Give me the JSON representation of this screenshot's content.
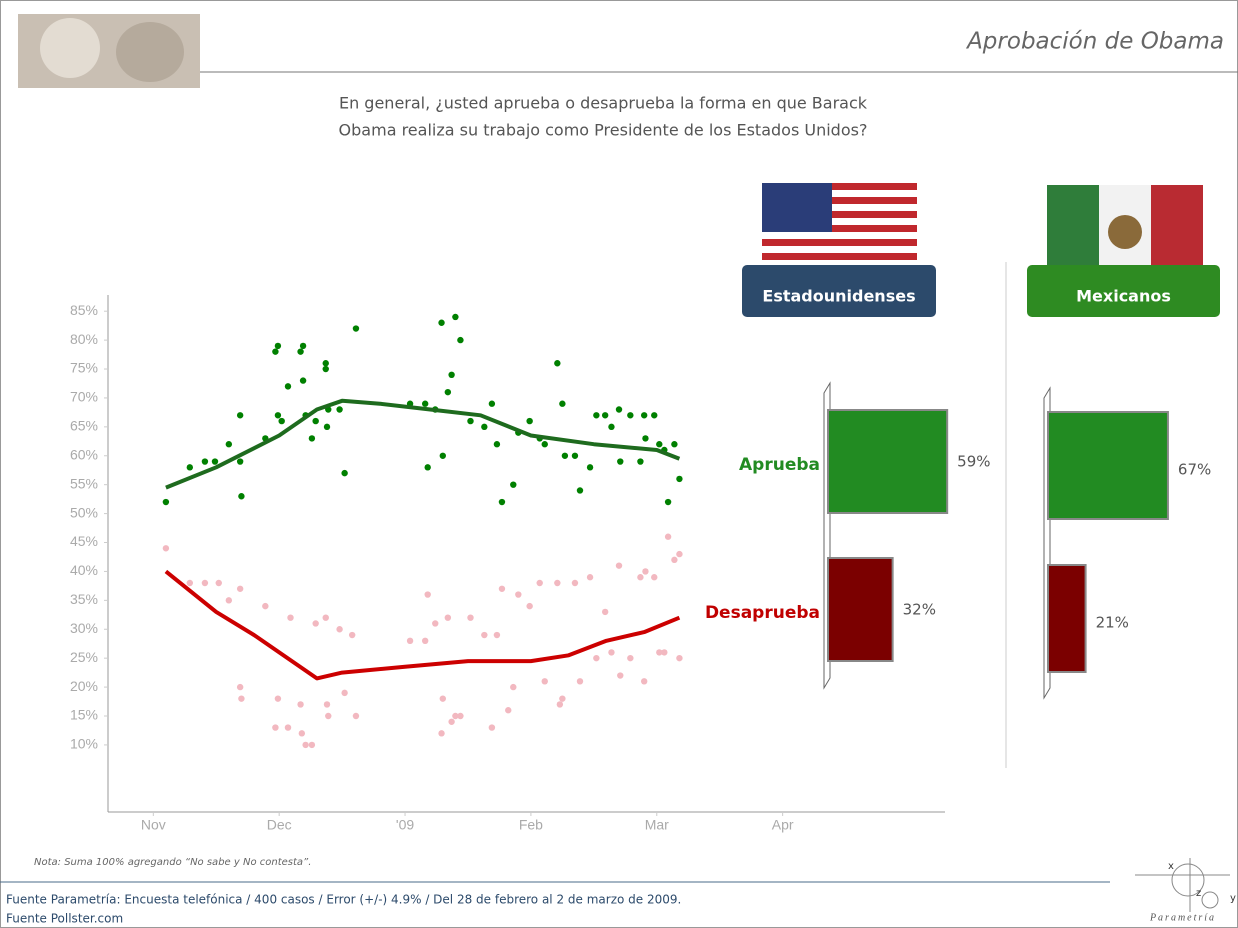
{
  "header": {
    "title": "Aprobación de Obama",
    "question": [
      "En general, ¿usted aprueba o desaprueba la forma en que Barack",
      "Obama realiza su trabajo como Presidente de los Estados Unidos?"
    ]
  },
  "note": "Nota: Suma 100% agregando “No sabe y No contesta”.",
  "sources": [
    "Fuente Parametría: Encuesta telefónica / 400 casos / Error (+/-) 4.9% / Del 28 de febrero al 2 de marzo de 2009.",
    "Fuente Pollster.com"
  ],
  "logo": {
    "name": "Parametría",
    "axes": [
      "x",
      "z",
      "y"
    ]
  },
  "chart_data": [
    {
      "type": "line",
      "xlim": [
        -0.36,
        6.29
      ],
      "ylim": [
        -1.6,
        87.8
      ],
      "xticks": [
        {
          "value": 0,
          "label": "Nov"
        },
        {
          "value": 1,
          "label": "Dec"
        },
        {
          "value": 2,
          "label": "'09"
        },
        {
          "value": 3,
          "label": "Feb"
        },
        {
          "value": 4,
          "label": "Mar"
        },
        {
          "value": 5,
          "label": "Apr"
        }
      ],
      "yticks": [
        {
          "value": 10,
          "label": "10%"
        },
        {
          "value": 15,
          "label": "15%"
        },
        {
          "value": 20,
          "label": "20%"
        },
        {
          "value": 25,
          "label": "25%"
        },
        {
          "value": 30,
          "label": "30%"
        },
        {
          "value": 35,
          "label": "35%"
        },
        {
          "value": 40,
          "label": "40%"
        },
        {
          "value": 45,
          "label": "45%"
        },
        {
          "value": 50,
          "label": "50%"
        },
        {
          "value": 55,
          "label": "55%"
        },
        {
          "value": 60,
          "label": "60%"
        },
        {
          "value": 65,
          "label": "65%"
        },
        {
          "value": 70,
          "label": "70%"
        },
        {
          "value": 75,
          "label": "75%"
        },
        {
          "value": 80,
          "label": "80%"
        },
        {
          "value": 85,
          "label": "85%"
        }
      ],
      "series": [
        {
          "style": "points",
          "color": "#f2b8c0",
          "x": [
            0.1,
            0.29,
            0.41,
            0.52,
            0.6,
            0.69,
            0.69,
            0.7,
            0.89,
            0.97,
            0.99,
            1.07,
            1.09,
            1.17,
            1.18,
            1.21,
            1.26,
            1.29,
            1.37,
            1.38,
            1.39,
            1.48,
            1.52,
            1.58,
            1.61,
            2.04,
            2.16,
            2.18,
            2.24,
            2.29,
            2.3,
            2.34,
            2.37,
            2.4,
            2.44,
            2.52,
            2.63,
            2.69,
            2.73,
            2.77,
            2.82,
            2.86,
            2.9,
            2.99,
            3.07,
            3.11,
            3.21,
            3.23,
            3.25,
            3.35,
            3.39,
            3.47,
            3.52,
            3.59,
            3.64,
            3.7,
            3.71,
            3.79,
            3.87,
            3.9,
            3.91,
            3.98,
            4.02,
            4.06,
            4.09,
            4.14,
            4.18,
            4.18
          ],
          "values": [
            44,
            38,
            38,
            38,
            35,
            37,
            20,
            18,
            34,
            13,
            18,
            13,
            32,
            17,
            12,
            10,
            10,
            31,
            32,
            17,
            15,
            30,
            19,
            29,
            15,
            28,
            28,
            36,
            31,
            12,
            18,
            32,
            14,
            15,
            15,
            32,
            29,
            13,
            29,
            37,
            16,
            20,
            36,
            34,
            38,
            21,
            38,
            17,
            18,
            38,
            21,
            39,
            25,
            33,
            26,
            41,
            22,
            25,
            39,
            21,
            40,
            39,
            26,
            26,
            46,
            42,
            43,
            25
          ]
        },
        {
          "style": "points",
          "color": "#008000",
          "x": [
            0.1,
            0.29,
            0.41,
            0.49,
            0.6,
            0.69,
            0.69,
            0.7,
            0.89,
            0.97,
            0.99,
            0.99,
            1.02,
            1.07,
            1.17,
            1.19,
            1.19,
            1.21,
            1.26,
            1.29,
            1.37,
            1.37,
            1.39,
            1.38,
            1.48,
            1.52,
            1.61,
            2.04,
            2.16,
            2.18,
            2.24,
            2.29,
            2.3,
            2.34,
            2.37,
            2.4,
            2.44,
            2.52,
            2.63,
            2.69,
            2.73,
            2.77,
            2.86,
            2.9,
            2.99,
            3.07,
            3.11,
            3.21,
            3.25,
            3.27,
            3.35,
            3.39,
            3.47,
            3.52,
            3.59,
            3.64,
            3.7,
            3.71,
            3.79,
            3.87,
            3.9,
            3.91,
            3.98,
            4.02,
            4.06,
            4.09,
            4.14,
            4.18
          ],
          "values": [
            52,
            58,
            59,
            59,
            62,
            67,
            59,
            53,
            63,
            78,
            79,
            67,
            66,
            72,
            78,
            79,
            73,
            67,
            63,
            66,
            76,
            75,
            68,
            65,
            68,
            57,
            82,
            69,
            69,
            58,
            68,
            83,
            60,
            71,
            74,
            84,
            80,
            66,
            65,
            69,
            62,
            52,
            55,
            64,
            66,
            63,
            62,
            76,
            69,
            60,
            60,
            54,
            58,
            67,
            67,
            65,
            68,
            59,
            67,
            59,
            67,
            63,
            67,
            62,
            61,
            52,
            62,
            56
          ]
        },
        {
          "style": "line",
          "color": "#1e6b1e",
          "x": [
            0.1,
            0.5,
            1.0,
            1.3,
            1.5,
            1.8,
            2.2,
            2.6,
            3.0,
            3.5,
            4.0,
            4.18
          ],
          "values": [
            54.5,
            58,
            63.5,
            68,
            69.5,
            69,
            68,
            67,
            63.5,
            62,
            61,
            59.5
          ]
        },
        {
          "style": "line",
          "color": "#cc0000",
          "x": [
            0.1,
            0.5,
            0.8,
            1.0,
            1.3,
            1.5,
            2.0,
            2.5,
            3.0,
            3.3,
            3.6,
            3.9,
            4.18
          ],
          "values": [
            40,
            33,
            29,
            26,
            21.5,
            22.5,
            23.5,
            24.5,
            24.5,
            25.5,
            28,
            29.5,
            32
          ]
        }
      ]
    },
    {
      "type": "bar",
      "title": "Estadounidenses",
      "title_color": "#2c4a6b",
      "categories": [
        "Aprueba",
        "Desaprueba"
      ],
      "values": [
        59,
        32
      ],
      "value_labels": [
        "59%",
        "32%"
      ],
      "colors": [
        "#228b22",
        "#7b0000"
      ],
      "label_colors": [
        "#228b22",
        "#c00000"
      ]
    },
    {
      "type": "bar",
      "title": "Mexicanos",
      "title_color": "#2e8b22",
      "categories": [
        null,
        null
      ],
      "values": [
        67,
        21
      ],
      "value_labels": [
        "67%",
        "21%"
      ],
      "colors": [
        "#228b22",
        "#7b0000"
      ]
    }
  ]
}
